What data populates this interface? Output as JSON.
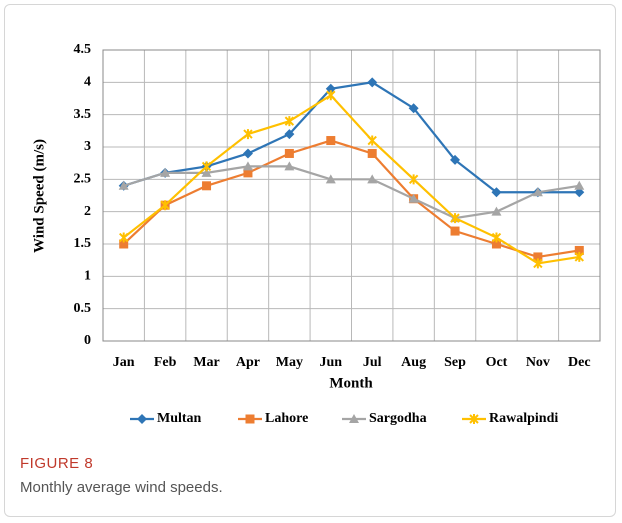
{
  "chart_data": {
    "type": "line",
    "x_label": "Month",
    "y_label": "Wind Speed (m/s)",
    "categories": [
      "Jan",
      "Feb",
      "Mar",
      "Apr",
      "May",
      "Jun",
      "Jul",
      "Aug",
      "Sep",
      "Oct",
      "Nov",
      "Dec"
    ],
    "series": [
      {
        "name": "Multan",
        "color": "#2e75b6",
        "marker": "diamond",
        "values": [
          2.4,
          2.6,
          2.7,
          2.9,
          3.2,
          3.9,
          4.0,
          3.6,
          2.8,
          2.3,
          2.3,
          2.3
        ]
      },
      {
        "name": "Lahore",
        "color": "#ed7d31",
        "marker": "square",
        "values": [
          1.5,
          2.1,
          2.4,
          2.6,
          2.9,
          3.1,
          2.9,
          2.2,
          1.7,
          1.5,
          1.3,
          1.4
        ]
      },
      {
        "name": "Sargodha",
        "color": "#a5a5a5",
        "marker": "triangle",
        "values": [
          2.4,
          2.6,
          2.6,
          2.7,
          2.7,
          2.5,
          2.5,
          2.2,
          1.9,
          2.0,
          2.3,
          2.4
        ]
      },
      {
        "name": "Rawalpindi",
        "color": "#ffc000",
        "marker": "star",
        "values": [
          1.6,
          2.1,
          2.7,
          3.2,
          3.4,
          3.8,
          3.1,
          2.5,
          1.9,
          1.6,
          1.2,
          1.3
        ]
      }
    ],
    "ylim": [
      0,
      4.5
    ],
    "yticks": [
      0,
      0.5,
      1,
      1.5,
      2,
      2.5,
      3,
      3.5,
      4,
      4.5
    ],
    "grid": true,
    "legend": "bottom"
  },
  "caption": {
    "label": "FIGURE 8",
    "text": "Monthly average wind speeds."
  }
}
